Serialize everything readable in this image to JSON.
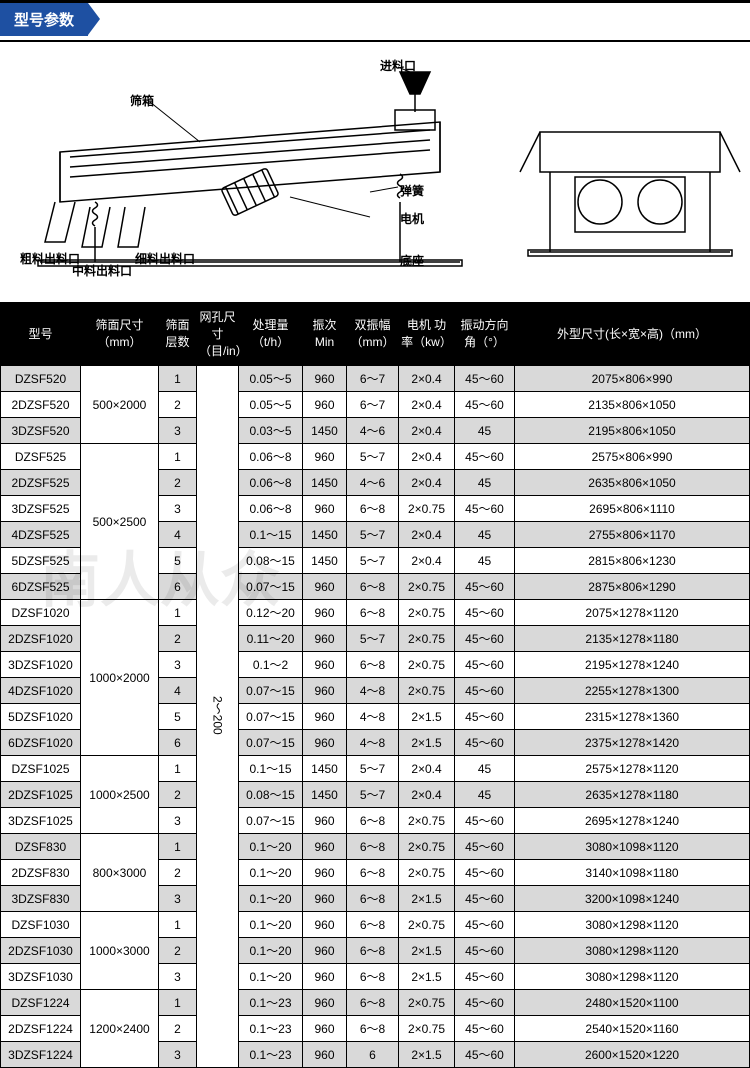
{
  "header": {
    "title": "型号参数"
  },
  "diagram": {
    "labels": {
      "inlet": "进料口",
      "screenbox": "筛箱",
      "spring": "弹簧",
      "motor": "电机",
      "base": "底座",
      "coarse_out": "粗料出料口",
      "mid_out": "中料出料口",
      "fine_out": "细料出料口"
    }
  },
  "table": {
    "headers": {
      "model": "型号",
      "screen_size": "筛面尺寸（mm）",
      "layers": "筛面层数",
      "mesh": "网孔尺寸（目/in）",
      "capacity": "处理量（t/h）",
      "freq": "振次Min",
      "amplitude": "双振幅（mm）",
      "power": "电机 功率（kw）",
      "angle": "振动方向角（°）",
      "dims": "外型尺寸(长×宽×高)（mm）"
    },
    "mesh_range": "2～200",
    "groups": [
      {
        "size": "500×2000",
        "rows": [
          {
            "m": "DZSF520",
            "l": "1",
            "c": "0.05～5",
            "f": "960",
            "a": "6～7",
            "p": "2×0.4",
            "an": "45～60",
            "d": "2075×806×990",
            "sh": 1
          },
          {
            "m": "2DZSF520",
            "l": "2",
            "c": "0.05～5",
            "f": "960",
            "a": "6～7",
            "p": "2×0.4",
            "an": "45～60",
            "d": "2135×806×1050"
          },
          {
            "m": "3DZSF520",
            "l": "3",
            "c": "0.03～5",
            "f": "1450",
            "a": "4～6",
            "p": "2×0.4",
            "an": "45",
            "d": "2195×806×1050",
            "sh": 1
          }
        ]
      },
      {
        "size": "500×2500",
        "rows": [
          {
            "m": "DZSF525",
            "l": "1",
            "c": "0.06～8",
            "f": "960",
            "a": "5～7",
            "p": "2×0.4",
            "an": "45～60",
            "d": "2575×806×990"
          },
          {
            "m": "2DZSF525",
            "l": "2",
            "c": "0.06～8",
            "f": "1450",
            "a": "4～6",
            "p": "2×0.4",
            "an": "45",
            "d": "2635×806×1050",
            "sh": 1
          },
          {
            "m": "3DZSF525",
            "l": "3",
            "c": "0.06～8",
            "f": "960",
            "a": "6～8",
            "p": "2×0.75",
            "an": "45～60",
            "d": "2695×806×1110"
          },
          {
            "m": "4DZSF525",
            "l": "4",
            "c": "0.1～15",
            "f": "1450",
            "a": "5～7",
            "p": "2×0.4",
            "an": "45",
            "d": "2755×806×1170",
            "sh": 1
          },
          {
            "m": "5DZSF525",
            "l": "5",
            "c": "0.08～15",
            "f": "1450",
            "a": "5～7",
            "p": "2×0.4",
            "an": "45",
            "d": "2815×806×1230"
          },
          {
            "m": "6DZSF525",
            "l": "6",
            "c": "0.07～15",
            "f": "960",
            "a": "6～8",
            "p": "2×0.75",
            "an": "45～60",
            "d": "2875×806×1290",
            "sh": 1
          }
        ]
      },
      {
        "size": "1000×2000",
        "rows": [
          {
            "m": "DZSF1020",
            "l": "1",
            "c": "0.12～20",
            "f": "960",
            "a": "6～8",
            "p": "2×0.75",
            "an": "45～60",
            "d": "2075×1278×1120"
          },
          {
            "m": "2DZSF1020",
            "l": "2",
            "c": "0.11～20",
            "f": "960",
            "a": "5～7",
            "p": "2×0.75",
            "an": "45～60",
            "d": "2135×1278×1180",
            "sh": 1
          },
          {
            "m": "3DZSF1020",
            "l": "3",
            "c": "0.1～2",
            "f": "960",
            "a": "6～8",
            "p": "2×0.75",
            "an": "45～60",
            "d": "2195×1278×1240"
          },
          {
            "m": "4DZSF1020",
            "l": "4",
            "c": "0.07～15",
            "f": "960",
            "a": "4～8",
            "p": "2×0.75",
            "an": "45～60",
            "d": "2255×1278×1300",
            "sh": 1
          },
          {
            "m": "5DZSF1020",
            "l": "5",
            "c": "0.07～15",
            "f": "960",
            "a": "4～8",
            "p": "2×1.5",
            "an": "45～60",
            "d": "2315×1278×1360"
          },
          {
            "m": "6DZSF1020",
            "l": "6",
            "c": "0.07～15",
            "f": "960",
            "a": "4～8",
            "p": "2×1.5",
            "an": "45～60",
            "d": "2375×1278×1420",
            "sh": 1
          }
        ]
      },
      {
        "size": "1000×2500",
        "rows": [
          {
            "m": "DZSF1025",
            "l": "1",
            "c": "0.1～15",
            "f": "1450",
            "a": "5～7",
            "p": "2×0.4",
            "an": "45",
            "d": "2575×1278×1120"
          },
          {
            "m": "2DZSF1025",
            "l": "2",
            "c": "0.08～15",
            "f": "1450",
            "a": "5～7",
            "p": "2×0.4",
            "an": "45",
            "d": "2635×1278×1180",
            "sh": 1
          },
          {
            "m": "3DZSF1025",
            "l": "3",
            "c": "0.07～15",
            "f": "960",
            "a": "6～8",
            "p": "2×0.75",
            "an": "45～60",
            "d": "2695×1278×1240"
          }
        ]
      },
      {
        "size": "800×3000",
        "rows": [
          {
            "m": "DZSF830",
            "l": "1",
            "c": "0.1～20",
            "f": "960",
            "a": "6～8",
            "p": "2×0.75",
            "an": "45～60",
            "d": "3080×1098×1120",
            "sh": 1
          },
          {
            "m": "2DZSF830",
            "l": "2",
            "c": "0.1～20",
            "f": "960",
            "a": "6～8",
            "p": "2×0.75",
            "an": "45～60",
            "d": "3140×1098×1180"
          },
          {
            "m": "3DZSF830",
            "l": "3",
            "c": "0.1～20",
            "f": "960",
            "a": "6～8",
            "p": "2×1.5",
            "an": "45～60",
            "d": "3200×1098×1240",
            "sh": 1
          }
        ]
      },
      {
        "size": "1000×3000",
        "rows": [
          {
            "m": "DZSF1030",
            "l": "1",
            "c": "0.1～20",
            "f": "960",
            "a": "6～8",
            "p": "2×0.75",
            "an": "45～60",
            "d": "3080×1298×1120"
          },
          {
            "m": "2DZSF1030",
            "l": "2",
            "c": "0.1～20",
            "f": "960",
            "a": "6～8",
            "p": "2×1.5",
            "an": "45～60",
            "d": "3080×1298×1120",
            "sh": 1
          },
          {
            "m": "3DZSF1030",
            "l": "3",
            "c": "0.1～20",
            "f": "960",
            "a": "6～8",
            "p": "2×1.5",
            "an": "45～60",
            "d": "3080×1298×1120"
          }
        ]
      },
      {
        "size": "1200×2400",
        "rows": [
          {
            "m": "DZSF1224",
            "l": "1",
            "c": "0.1～23",
            "f": "960",
            "a": "6～8",
            "p": "2×0.75",
            "an": "45～60",
            "d": "2480×1520×1100",
            "sh": 1
          },
          {
            "m": "2DZSF1224",
            "l": "2",
            "c": "0.1～23",
            "f": "960",
            "a": "6～8",
            "p": "2×0.75",
            "an": "45～60",
            "d": "2540×1520×1160"
          },
          {
            "m": "3DZSF1224",
            "l": "3",
            "c": "0.1～23",
            "f": "960",
            "a": "6",
            "p": "2×1.5",
            "an": "45～60",
            "d": "2600×1520×1220",
            "sh": 1
          }
        ]
      }
    ]
  }
}
